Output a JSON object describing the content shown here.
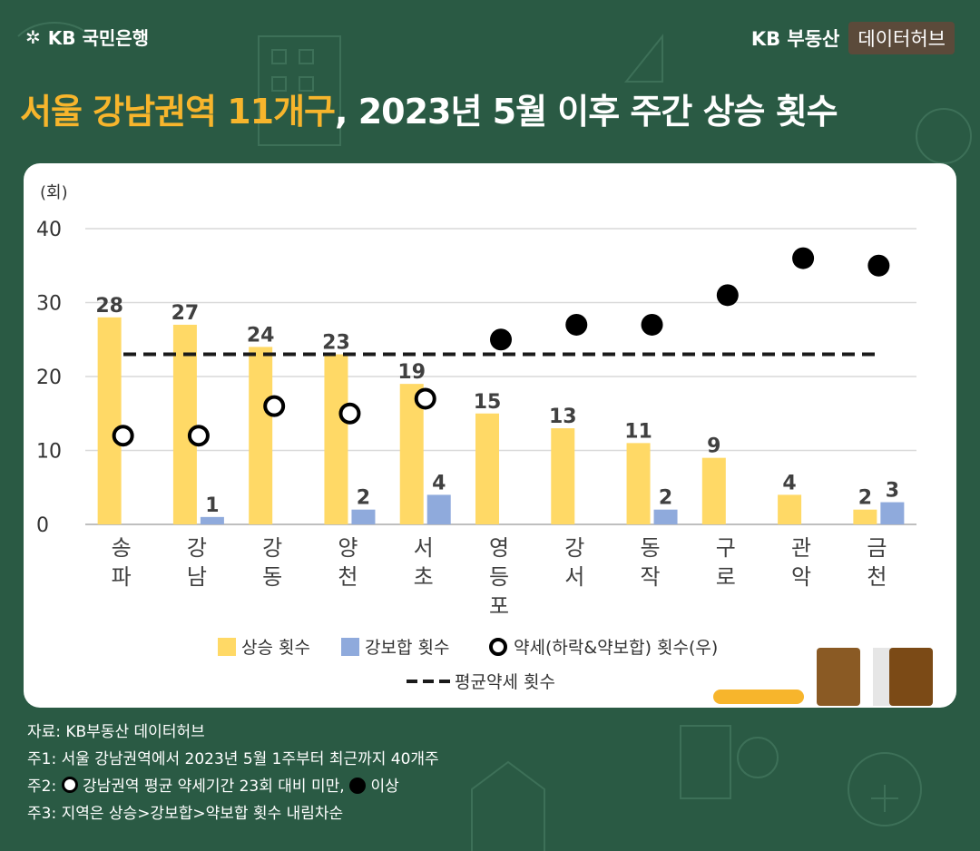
{
  "header": {
    "logo": "KB 국민은행",
    "brand": "KB 부동산",
    "hub": "데이터허브"
  },
  "title": {
    "highlight": "서울 강남권역 11개구",
    "rest": ", 2023년 5월 이후 주간 상승 횟수"
  },
  "chart_data": {
    "type": "bar",
    "ylabel": "(회)",
    "ylim": [
      0,
      40
    ],
    "yticks": [
      0,
      10,
      20,
      30,
      40
    ],
    "categories": [
      "송파",
      "강남",
      "강동",
      "양천",
      "서초",
      "영등포",
      "강서",
      "동작",
      "구로",
      "관악",
      "금천"
    ],
    "category_lines": [
      [
        "송",
        "파"
      ],
      [
        "강",
        "남"
      ],
      [
        "강",
        "동"
      ],
      [
        "양",
        "천"
      ],
      [
        "서",
        "초"
      ],
      [
        "영",
        "등",
        "포"
      ],
      [
        "강",
        "서"
      ],
      [
        "동",
        "작"
      ],
      [
        "구",
        "로"
      ],
      [
        "관",
        "악"
      ],
      [
        "금",
        "천"
      ]
    ],
    "series": [
      {
        "name": "상승 횟수",
        "type": "bar",
        "color": "#ffd966",
        "values": [
          28,
          27,
          24,
          23,
          19,
          15,
          13,
          11,
          9,
          4,
          2
        ]
      },
      {
        "name": "강보합 횟수",
        "type": "bar",
        "color": "#8faadc",
        "values": [
          null,
          1,
          null,
          2,
          4,
          null,
          null,
          2,
          null,
          null,
          3
        ]
      },
      {
        "name": "약세(하락&약보합) 횟수(우)",
        "type": "scatter",
        "values": [
          12,
          12,
          16,
          15,
          17,
          25,
          27,
          27,
          31,
          36,
          35
        ],
        "below_average": [
          true,
          true,
          true,
          true,
          true,
          false,
          false,
          false,
          false,
          false,
          false
        ]
      },
      {
        "name": "평균약세 횟수",
        "type": "line",
        "style": "dashed",
        "value": 23
      }
    ]
  },
  "notes": {
    "source": "자료: KB부동산 데이터허브",
    "n1": "주1: 서울 강남권역에서 2023년 5월 1주부터 최근까지 40개주",
    "n2_a": "주2:",
    "n2_b": "강남권역 평균 약세기간 23회 대비 미만,",
    "n2_c": "이상",
    "n3": "주3: 지역은 상승>강보합>약보합 횟수 내림차순"
  }
}
